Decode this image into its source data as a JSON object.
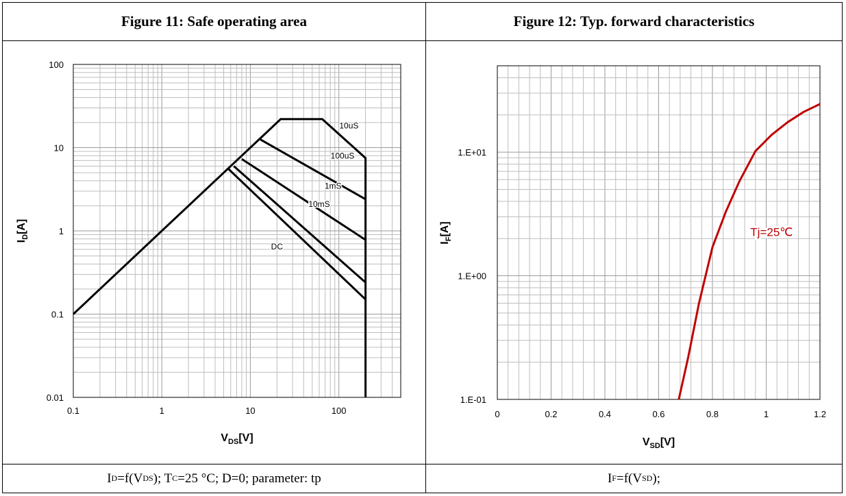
{
  "figure11": {
    "title": "Figure 11:  Safe operating area",
    "caption": {
      "p1": "I",
      "s1": "D",
      "p2": "=f(V",
      "s2": "DS",
      "p3": "); T",
      "s3": "C",
      "p4": "=25 °C; D=0; parameter: tp"
    }
  },
  "figure12": {
    "title": "Figure 12:  Typ. forward characteristics",
    "caption": {
      "p1": "I",
      "s1": "F",
      "p2": "=f(V",
      "s2": "SD",
      "p3": ");"
    }
  },
  "chart_data": [
    {
      "type": "line",
      "xscale": "log",
      "yscale": "log",
      "xlim": [
        0.1,
        500
      ],
      "ylim": [
        0.01,
        100
      ],
      "xticks": [
        0.1,
        1,
        10,
        100
      ],
      "xtick_labels": [
        "0.1",
        "1",
        "10",
        "100"
      ],
      "yticks": [
        0.01,
        0.1,
        1,
        10,
        100
      ],
      "ytick_labels": [
        "0.01",
        "0.1",
        "1",
        "10",
        "100"
      ],
      "xlabel": {
        "main": "V",
        "sub": "DS",
        "unit": "[V]"
      },
      "ylabel": {
        "main": "I",
        "sub": "D",
        "unit": "[A]"
      },
      "grid": true,
      "series": [
        {
          "name": "10uS",
          "x": [
            0.1,
            22,
            65,
            200,
            200
          ],
          "y": [
            0.1,
            22,
            22,
            7.5,
            0.01
          ]
        },
        {
          "name": "100uS",
          "x": [
            13,
            200
          ],
          "y": [
            12.5,
            2.4
          ]
        },
        {
          "name": "1mS",
          "x": [
            8,
            200
          ],
          "y": [
            7.3,
            0.78
          ]
        },
        {
          "name": "10mS",
          "x": [
            6.5,
            200
          ],
          "y": [
            6,
            0.24
          ]
        },
        {
          "name": "DC",
          "x": [
            5.7,
            200
          ],
          "y": [
            5.5,
            0.15
          ]
        }
      ],
      "annotations": [
        {
          "text": "10uS",
          "x": 130,
          "y": 17
        },
        {
          "text": "100uS",
          "x": 110,
          "y": 7.4
        },
        {
          "text": "1mS",
          "x": 86,
          "y": 3.2
        },
        {
          "text": "10mS",
          "x": 60,
          "y": 1.95
        },
        {
          "text": "DC",
          "x": 20,
          "y": 0.6
        }
      ],
      "line_color": "#000000"
    },
    {
      "type": "line",
      "xscale": "linear",
      "yscale": "log",
      "xlim": [
        0,
        1.2
      ],
      "ylim": [
        0.1,
        50
      ],
      "xticks": [
        0,
        0.2,
        0.4,
        0.6,
        0.8,
        1,
        1.2
      ],
      "xtick_labels": [
        "0",
        "0.2",
        "0.4",
        "0.6",
        "0.8",
        "1",
        "1.2"
      ],
      "yticks": [
        0.1,
        1,
        10
      ],
      "ytick_labels": [
        "1.E-01",
        "1.E+00",
        "1.E+01"
      ],
      "xlabel": {
        "main": "V",
        "sub": "SD",
        "unit": "[V]"
      },
      "ylabel": {
        "main": "I",
        "sub": "F",
        "unit": "[A]"
      },
      "grid": true,
      "series": [
        {
          "name": "Tj=25℃",
          "x": [
            0.675,
            0.71,
            0.75,
            0.8,
            0.85,
            0.9,
            0.96,
            1.02,
            1.08,
            1.14,
            1.2
          ],
          "y": [
            0.1,
            0.22,
            0.6,
            1.7,
            3.3,
            5.8,
            10.2,
            13.8,
            17.5,
            21.2,
            24.5
          ]
        }
      ],
      "annotations": [
        {
          "text": "Tj=25℃",
          "x": 1.02,
          "y": 2.1
        }
      ],
      "line_color": "#c00000"
    }
  ]
}
